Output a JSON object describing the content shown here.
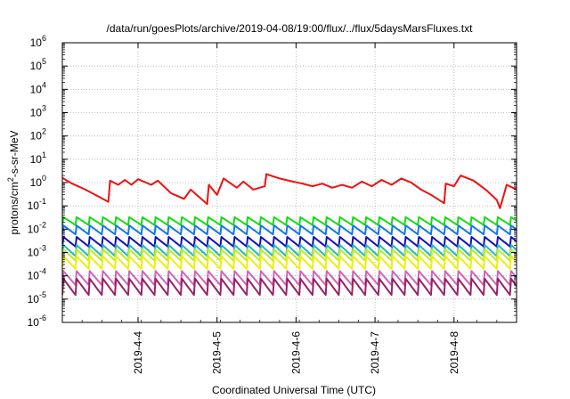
{
  "chart_data": {
    "type": "line",
    "title": "/data/run/goesPlots/archive/2019-04-08/19:00/flux/../flux/5daysMarsFluxes.txt",
    "xlabel": "Coordinated Universal Time (UTC)",
    "ylabel": "protons/cm2-s-sr-MeV",
    "ylabel_parts": {
      "pre": "protons/cm",
      "sup": "2",
      "post": "-s-sr-MeV"
    },
    "yscale": "log",
    "ylim": [
      1e-06,
      1000000.0
    ],
    "y_tick_labels": [
      {
        "base": "10",
        "exp": "-6"
      },
      {
        "base": "10",
        "exp": "-5"
      },
      {
        "base": "10",
        "exp": "-4"
      },
      {
        "base": "10",
        "exp": "-3"
      },
      {
        "base": "10",
        "exp": "-2"
      },
      {
        "base": "10",
        "exp": "-1"
      },
      {
        "base": "10",
        "exp": "0"
      },
      {
        "base": "10",
        "exp": "1"
      },
      {
        "base": "10",
        "exp": "2"
      },
      {
        "base": "10",
        "exp": "3"
      },
      {
        "base": "10",
        "exp": "4"
      },
      {
        "base": "10",
        "exp": "5"
      },
      {
        "base": "10",
        "exp": "6"
      }
    ],
    "xlim": [
      "2019-04-03 01:00",
      "2019-04-08 19:00"
    ],
    "x_ticks": [
      "2019-4-4",
      "2019-4-5",
      "2019-4-6",
      "2019-4-7",
      "2019-4-8"
    ],
    "grid": true,
    "legend": "none",
    "series": [
      {
        "color": "#ee1111",
        "x": [
          "2019-04-03 01:00",
          "2019-04-03 04:00",
          "2019-04-03 08:00",
          "2019-04-03 12:00",
          "2019-04-03 15:00",
          "2019-04-03 15:30",
          "2019-04-03 18:00",
          "2019-04-03 20:00",
          "2019-04-03 22:00",
          "2019-04-04 00:00",
          "2019-04-04 04:00",
          "2019-04-04 06:00",
          "2019-04-04 10:00",
          "2019-04-04 14:00",
          "2019-04-04 16:00",
          "2019-04-04 21:00",
          "2019-04-04 21:30",
          "2019-04-05 00:00",
          "2019-04-05 02:00",
          "2019-04-05 06:00",
          "2019-04-05 08:00",
          "2019-04-05 11:00",
          "2019-04-05 14:30",
          "2019-04-05 15:00",
          "2019-04-05 19:00",
          "2019-04-05 23:00",
          "2019-04-06 02:00",
          "2019-04-06 05:00",
          "2019-04-06 08:00",
          "2019-04-06 11:00",
          "2019-04-06 14:00",
          "2019-04-06 17:00",
          "2019-04-06 20:00",
          "2019-04-06 23:00",
          "2019-04-07 02:00",
          "2019-04-07 05:00",
          "2019-04-07 08:00",
          "2019-04-07 11:00",
          "2019-04-07 14:00",
          "2019-04-07 17:00",
          "2019-04-07 21:00",
          "2019-04-07 21:30",
          "2019-04-08 00:00",
          "2019-04-08 02:00",
          "2019-04-08 06:00",
          "2019-04-08 10:00",
          "2019-04-08 13:00",
          "2019-04-08 14:00",
          "2019-04-08 16:00",
          "2019-04-08 19:00"
        ],
        "values": [
          1.6,
          0.9,
          0.5,
          0.25,
          0.15,
          1.2,
          0.8,
          1.3,
          0.8,
          1.4,
          0.8,
          1.2,
          0.35,
          0.2,
          0.5,
          0.12,
          0.8,
          0.3,
          1.5,
          0.6,
          1.1,
          0.5,
          0.7,
          2.3,
          1.5,
          1.1,
          0.9,
          0.7,
          0.9,
          0.6,
          0.8,
          0.6,
          1.1,
          0.7,
          1.3,
          0.8,
          1.5,
          1.0,
          0.5,
          0.3,
          0.13,
          0.9,
          0.7,
          2.0,
          1.2,
          0.45,
          0.18,
          0.08,
          0.8,
          0.5
        ]
      },
      {
        "color": "#11dd11",
        "baseline": 0.015,
        "amplitude": 2.2,
        "period_hours": 4
      },
      {
        "color": "#1177ee",
        "baseline": 0.006,
        "amplitude": 2.4,
        "period_hours": 4
      },
      {
        "color": "#1111bb",
        "baseline": 0.0018,
        "amplitude": 2.6,
        "period_hours": 4
      },
      {
        "color": "#22bbbb",
        "baseline": 0.0007,
        "amplitude": 3.0,
        "period_hours": 4
      },
      {
        "color": "#bbee22",
        "baseline": 0.00045,
        "amplitude": 3.0,
        "period_hours": 4
      },
      {
        "color": "#eeee11",
        "baseline": 0.0002,
        "amplitude": 3.5,
        "period_hours": 4
      },
      {
        "color": "#cc66bb",
        "baseline": 4e-05,
        "amplitude": 4.0,
        "period_hours": 4
      },
      {
        "color": "#992266",
        "baseline": 1.5e-05,
        "amplitude": 5.0,
        "period_hours": 4
      }
    ]
  }
}
